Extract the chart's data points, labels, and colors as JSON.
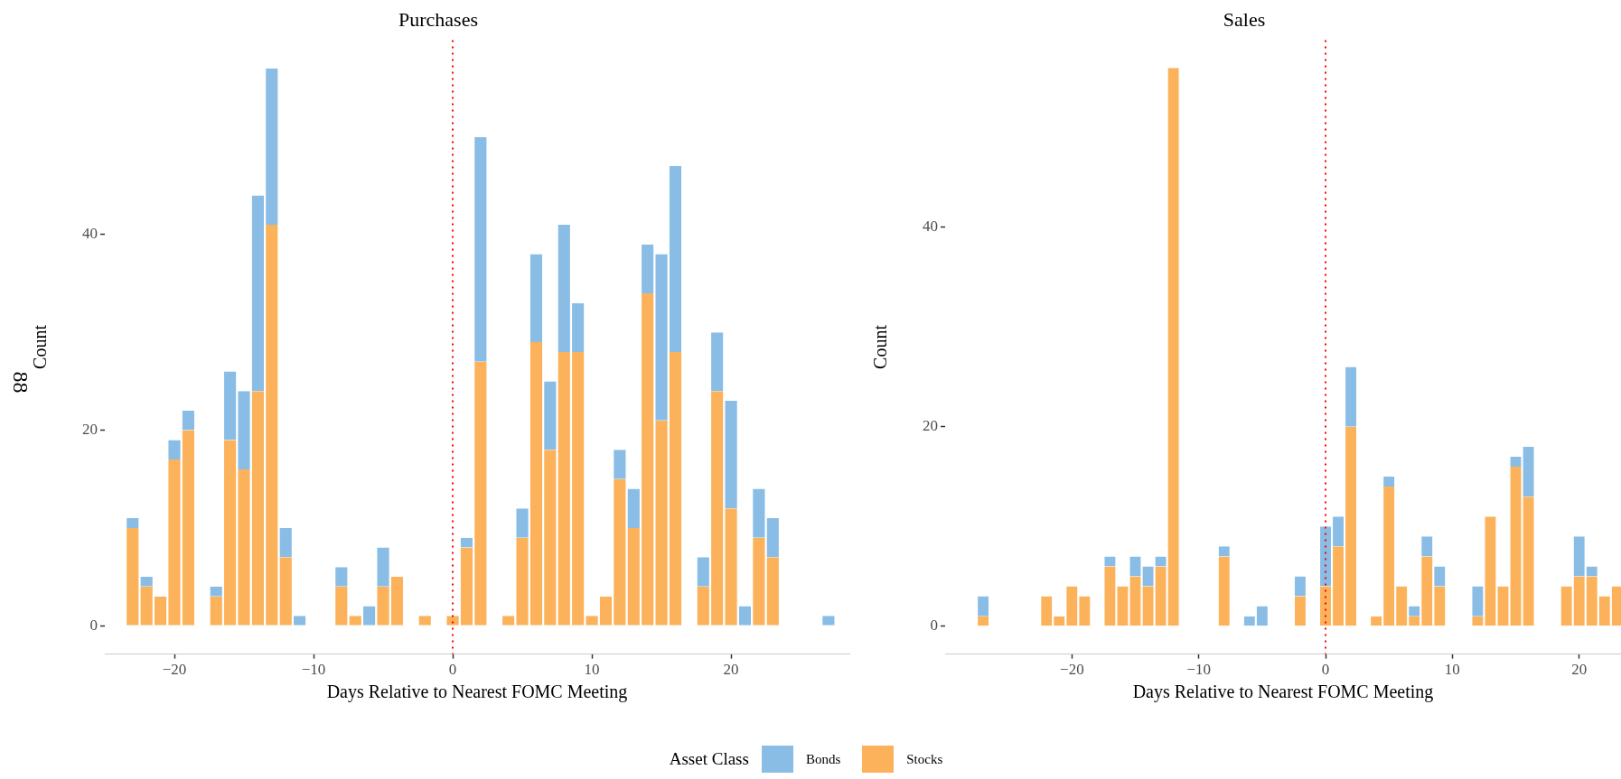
{
  "chart_data": [
    {
      "type": "bar",
      "title": "Purchases",
      "xlabel": "Days Relative to Nearest FOMC Meeting",
      "ylabel": "Count",
      "legend_title": "Asset Class",
      "legend": "bottom",
      "stacked": true,
      "x": [
        -23,
        -22,
        -21,
        -20,
        -19,
        -18,
        -17,
        -16,
        -15,
        -14,
        -13,
        -12,
        -11,
        -10,
        -9,
        -8,
        -7,
        -6,
        -5,
        -4,
        -3,
        -2,
        -1,
        0,
        1,
        2,
        3,
        4,
        5,
        6,
        7,
        8,
        9,
        10,
        11,
        12,
        13,
        14,
        15,
        16,
        17,
        18,
        19,
        20,
        21,
        22,
        23,
        24,
        25,
        26,
        27
      ],
      "series": [
        {
          "name": "Stocks",
          "color": "#fbb25a",
          "values": [
            10,
            4,
            3,
            17,
            20,
            0,
            3,
            19,
            16,
            24,
            41,
            7,
            0,
            0,
            0,
            4,
            1,
            0,
            4,
            5,
            0,
            1,
            0,
            1,
            8,
            27,
            0,
            1,
            9,
            29,
            18,
            28,
            28,
            1,
            3,
            15,
            10,
            34,
            21,
            28,
            0,
            4,
            24,
            12,
            0,
            9,
            7,
            0,
            0,
            0,
            0
          ]
        },
        {
          "name": "Bonds",
          "color": "#89bde6",
          "values": [
            1,
            1,
            0,
            2,
            2,
            0,
            1,
            7,
            8,
            20,
            16,
            3,
            1,
            0,
            0,
            2,
            0,
            2,
            4,
            0,
            0,
            0,
            0,
            0,
            1,
            23,
            0,
            0,
            3,
            9,
            7,
            13,
            5,
            0,
            0,
            3,
            4,
            5,
            17,
            19,
            0,
            3,
            6,
            11,
            2,
            5,
            4,
            0,
            0,
            0,
            1
          ]
        }
      ],
      "xlim": [
        -25,
        28.5
      ],
      "xticks": [
        -20,
        -10,
        0,
        10,
        20
      ],
      "ylim": [
        -2.9,
        59.9
      ],
      "yticks": [
        0,
        20,
        40
      ],
      "ref_lines": [
        {
          "axis": "x",
          "value": 0,
          "color": "#ff0000",
          "line_style": "dotted"
        }
      ],
      "annotations": [
        "88"
      ]
    },
    {
      "type": "bar",
      "title": "Sales",
      "xlabel": "Days Relative to Nearest FOMC Meeting",
      "ylabel": "Count",
      "stacked": true,
      "x": [
        -27,
        -26,
        -25,
        -24,
        -23,
        -22,
        -21,
        -20,
        -19,
        -18,
        -17,
        -16,
        -15,
        -14,
        -13,
        -12,
        -11,
        -10,
        -9,
        -8,
        -7,
        -6,
        -5,
        -4,
        -3,
        -2,
        -1,
        0,
        1,
        2,
        3,
        4,
        5,
        6,
        7,
        8,
        9,
        10,
        11,
        12,
        13,
        14,
        15,
        16,
        17,
        18,
        19,
        20,
        21,
        22,
        23
      ],
      "series": [
        {
          "color": "#fbb25a",
          "values": [
            1,
            0,
            0,
            0,
            0,
            3,
            1,
            4,
            3,
            0,
            6,
            4,
            5,
            4,
            6,
            56,
            0,
            0,
            0,
            7,
            0,
            0,
            0,
            0,
            0,
            3,
            0,
            4,
            8,
            20,
            0,
            1,
            14,
            4,
            1,
            7,
            4,
            0,
            0,
            1,
            11,
            4,
            16,
            13,
            0,
            0,
            4,
            5,
            5,
            3,
            4
          ]
        },
        {
          "color": "#89bde6",
          "values": [
            2,
            0,
            0,
            0,
            0,
            0,
            0,
            0,
            0,
            0,
            1,
            0,
            2,
            2,
            1,
            0,
            0,
            0,
            0,
            1,
            0,
            1,
            2,
            0,
            0,
            2,
            0,
            6,
            3,
            6,
            0,
            0,
            1,
            0,
            1,
            2,
            2,
            0,
            0,
            3,
            0,
            0,
            1,
            5,
            0,
            0,
            0,
            4,
            1,
            0,
            0
          ]
        }
      ],
      "xlim": [
        -30,
        23.3
      ],
      "xticks": [
        -20,
        -10,
        0,
        10,
        20
      ],
      "ylim": [
        -2.8,
        58.8
      ],
      "yticks": [
        0,
        20,
        40
      ],
      "ref_lines": [
        {
          "axis": "x",
          "value": 0,
          "color": "#ff0000",
          "line_style": "dotted"
        }
      ]
    }
  ]
}
